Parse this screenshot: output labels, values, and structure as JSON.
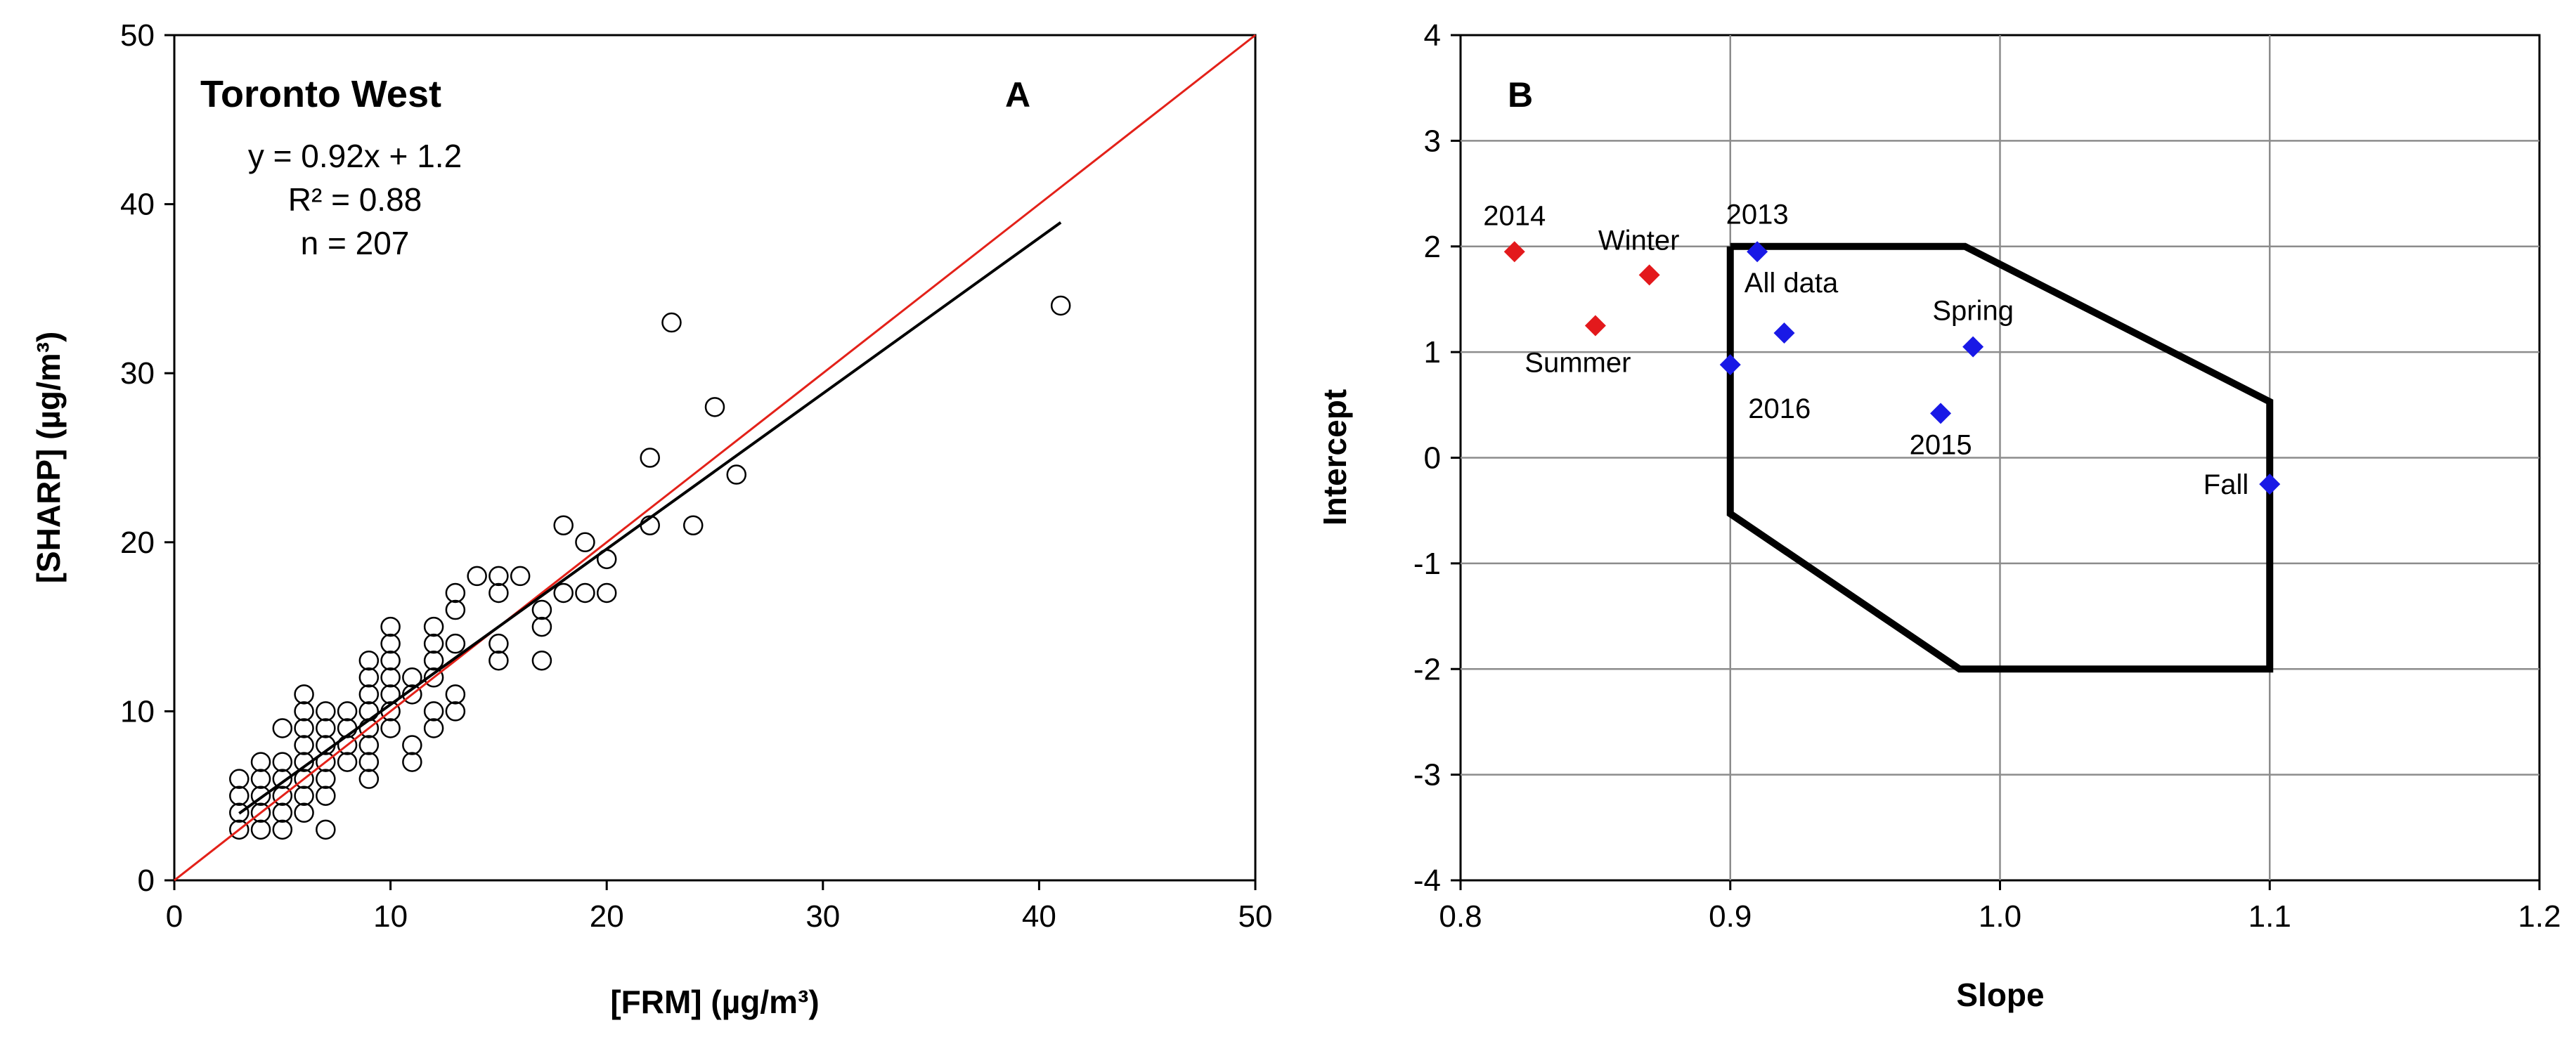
{
  "chart_data": [
    {
      "type": "scatter",
      "panel_letter": "A",
      "title": "Toronto West",
      "equation": "y = 0.92x + 1.2",
      "r_squared": "R² = 0.88",
      "n_label": "n = 207",
      "xlabel": "[FRM] (µg/m³)",
      "ylabel": "[SHARP] (µg/m³)",
      "xlim": [
        0,
        50
      ],
      "ylim": [
        0,
        50
      ],
      "x_ticks": [
        "0",
        "10",
        "20",
        "30",
        "40",
        "50"
      ],
      "y_ticks": [
        "0",
        "10",
        "20",
        "30",
        "40",
        "50"
      ],
      "grid": false,
      "one_to_one_line": {
        "x": [
          0,
          50
        ],
        "y": [
          0,
          50
        ],
        "color": "#e32119"
      },
      "fit_line": {
        "x": [
          3,
          41
        ],
        "y": [
          3.96,
          38.92
        ],
        "slope": 0.92,
        "intercept": 1.2,
        "color": "#000000"
      },
      "points": [
        [
          3,
          3
        ],
        [
          3,
          4
        ],
        [
          3,
          5
        ],
        [
          3,
          6
        ],
        [
          4,
          3
        ],
        [
          4,
          4
        ],
        [
          4,
          5
        ],
        [
          4,
          6
        ],
        [
          4,
          7
        ],
        [
          5,
          3
        ],
        [
          5,
          4
        ],
        [
          5,
          5
        ],
        [
          5,
          6
        ],
        [
          5,
          7
        ],
        [
          5,
          9
        ],
        [
          6,
          4
        ],
        [
          6,
          5
        ],
        [
          6,
          6
        ],
        [
          6,
          7
        ],
        [
          6,
          8
        ],
        [
          6,
          9
        ],
        [
          6,
          10
        ],
        [
          6,
          11
        ],
        [
          7,
          3
        ],
        [
          7,
          5
        ],
        [
          7,
          6
        ],
        [
          7,
          7
        ],
        [
          7,
          8
        ],
        [
          7,
          9
        ],
        [
          7,
          10
        ],
        [
          8,
          7
        ],
        [
          8,
          8
        ],
        [
          8,
          9
        ],
        [
          8,
          10
        ],
        [
          9,
          6
        ],
        [
          9,
          7
        ],
        [
          9,
          8
        ],
        [
          9,
          9
        ],
        [
          9,
          10
        ],
        [
          9,
          11
        ],
        [
          9,
          12
        ],
        [
          9,
          13
        ],
        [
          10,
          9
        ],
        [
          10,
          10
        ],
        [
          10,
          11
        ],
        [
          10,
          12
        ],
        [
          10,
          13
        ],
        [
          10,
          14
        ],
        [
          10,
          15
        ],
        [
          11,
          7
        ],
        [
          11,
          8
        ],
        [
          11,
          11
        ],
        [
          11,
          12
        ],
        [
          12,
          9
        ],
        [
          12,
          10
        ],
        [
          12,
          12
        ],
        [
          12,
          13
        ],
        [
          12,
          14
        ],
        [
          12,
          15
        ],
        [
          13,
          10
        ],
        [
          13,
          11
        ],
        [
          13,
          14
        ],
        [
          13,
          16
        ],
        [
          13,
          17
        ],
        [
          14,
          18
        ],
        [
          15,
          13
        ],
        [
          15,
          14
        ],
        [
          15,
          17
        ],
        [
          15,
          18
        ],
        [
          16,
          18
        ],
        [
          17,
          13
        ],
        [
          17,
          15
        ],
        [
          17,
          16
        ],
        [
          18,
          17
        ],
        [
          18,
          21
        ],
        [
          19,
          17
        ],
        [
          19,
          20
        ],
        [
          20,
          17
        ],
        [
          20,
          19
        ],
        [
          22,
          21
        ],
        [
          22,
          25
        ],
        [
          23,
          33
        ],
        [
          24,
          21
        ],
        [
          25,
          28
        ],
        [
          26,
          24
        ],
        [
          41,
          34
        ]
      ]
    },
    {
      "type": "scatter",
      "panel_letter": "B",
      "xlabel": "Slope",
      "ylabel": "Intercept",
      "xlim": [
        0.8,
        1.2
      ],
      "ylim": [
        -4,
        4
      ],
      "x_ticks": [
        "0.8",
        "0.9",
        "1.0",
        "1.1",
        "1.2"
      ],
      "y_ticks": [
        "-4",
        "-3",
        "-2",
        "-1",
        "0",
        "1",
        "2",
        "3",
        "4"
      ],
      "grid": true,
      "acceptance_region": {
        "x": [
          0.9,
          0.987,
          1.1,
          1.1,
          0.985,
          0.9,
          0.9
        ],
        "y": [
          2,
          2,
          0.53,
          -2,
          -2,
          -0.53,
          2
        ]
      },
      "points": [
        {
          "label": "2014",
          "x": 0.82,
          "y": 1.95,
          "color": "#e3191c"
        },
        {
          "label": "Winter",
          "x": 0.87,
          "y": 1.73,
          "color": "#e3191c"
        },
        {
          "label": "Summer",
          "x": 0.85,
          "y": 1.25,
          "color": "#e3191c"
        },
        {
          "label": "2013",
          "x": 0.91,
          "y": 1.95,
          "color": "#1919e6"
        },
        {
          "label": "All data",
          "x": 0.92,
          "y": 1.18,
          "color": "#1919e6"
        },
        {
          "label": "2016",
          "x": 0.9,
          "y": 0.88,
          "color": "#1919e6"
        },
        {
          "label": "Spring",
          "x": 0.99,
          "y": 1.05,
          "color": "#1919e6"
        },
        {
          "label": "2015",
          "x": 0.978,
          "y": 0.42,
          "color": "#1919e6"
        },
        {
          "label": "Fall",
          "x": 1.1,
          "y": -0.25,
          "color": "#1919e6"
        }
      ]
    }
  ]
}
